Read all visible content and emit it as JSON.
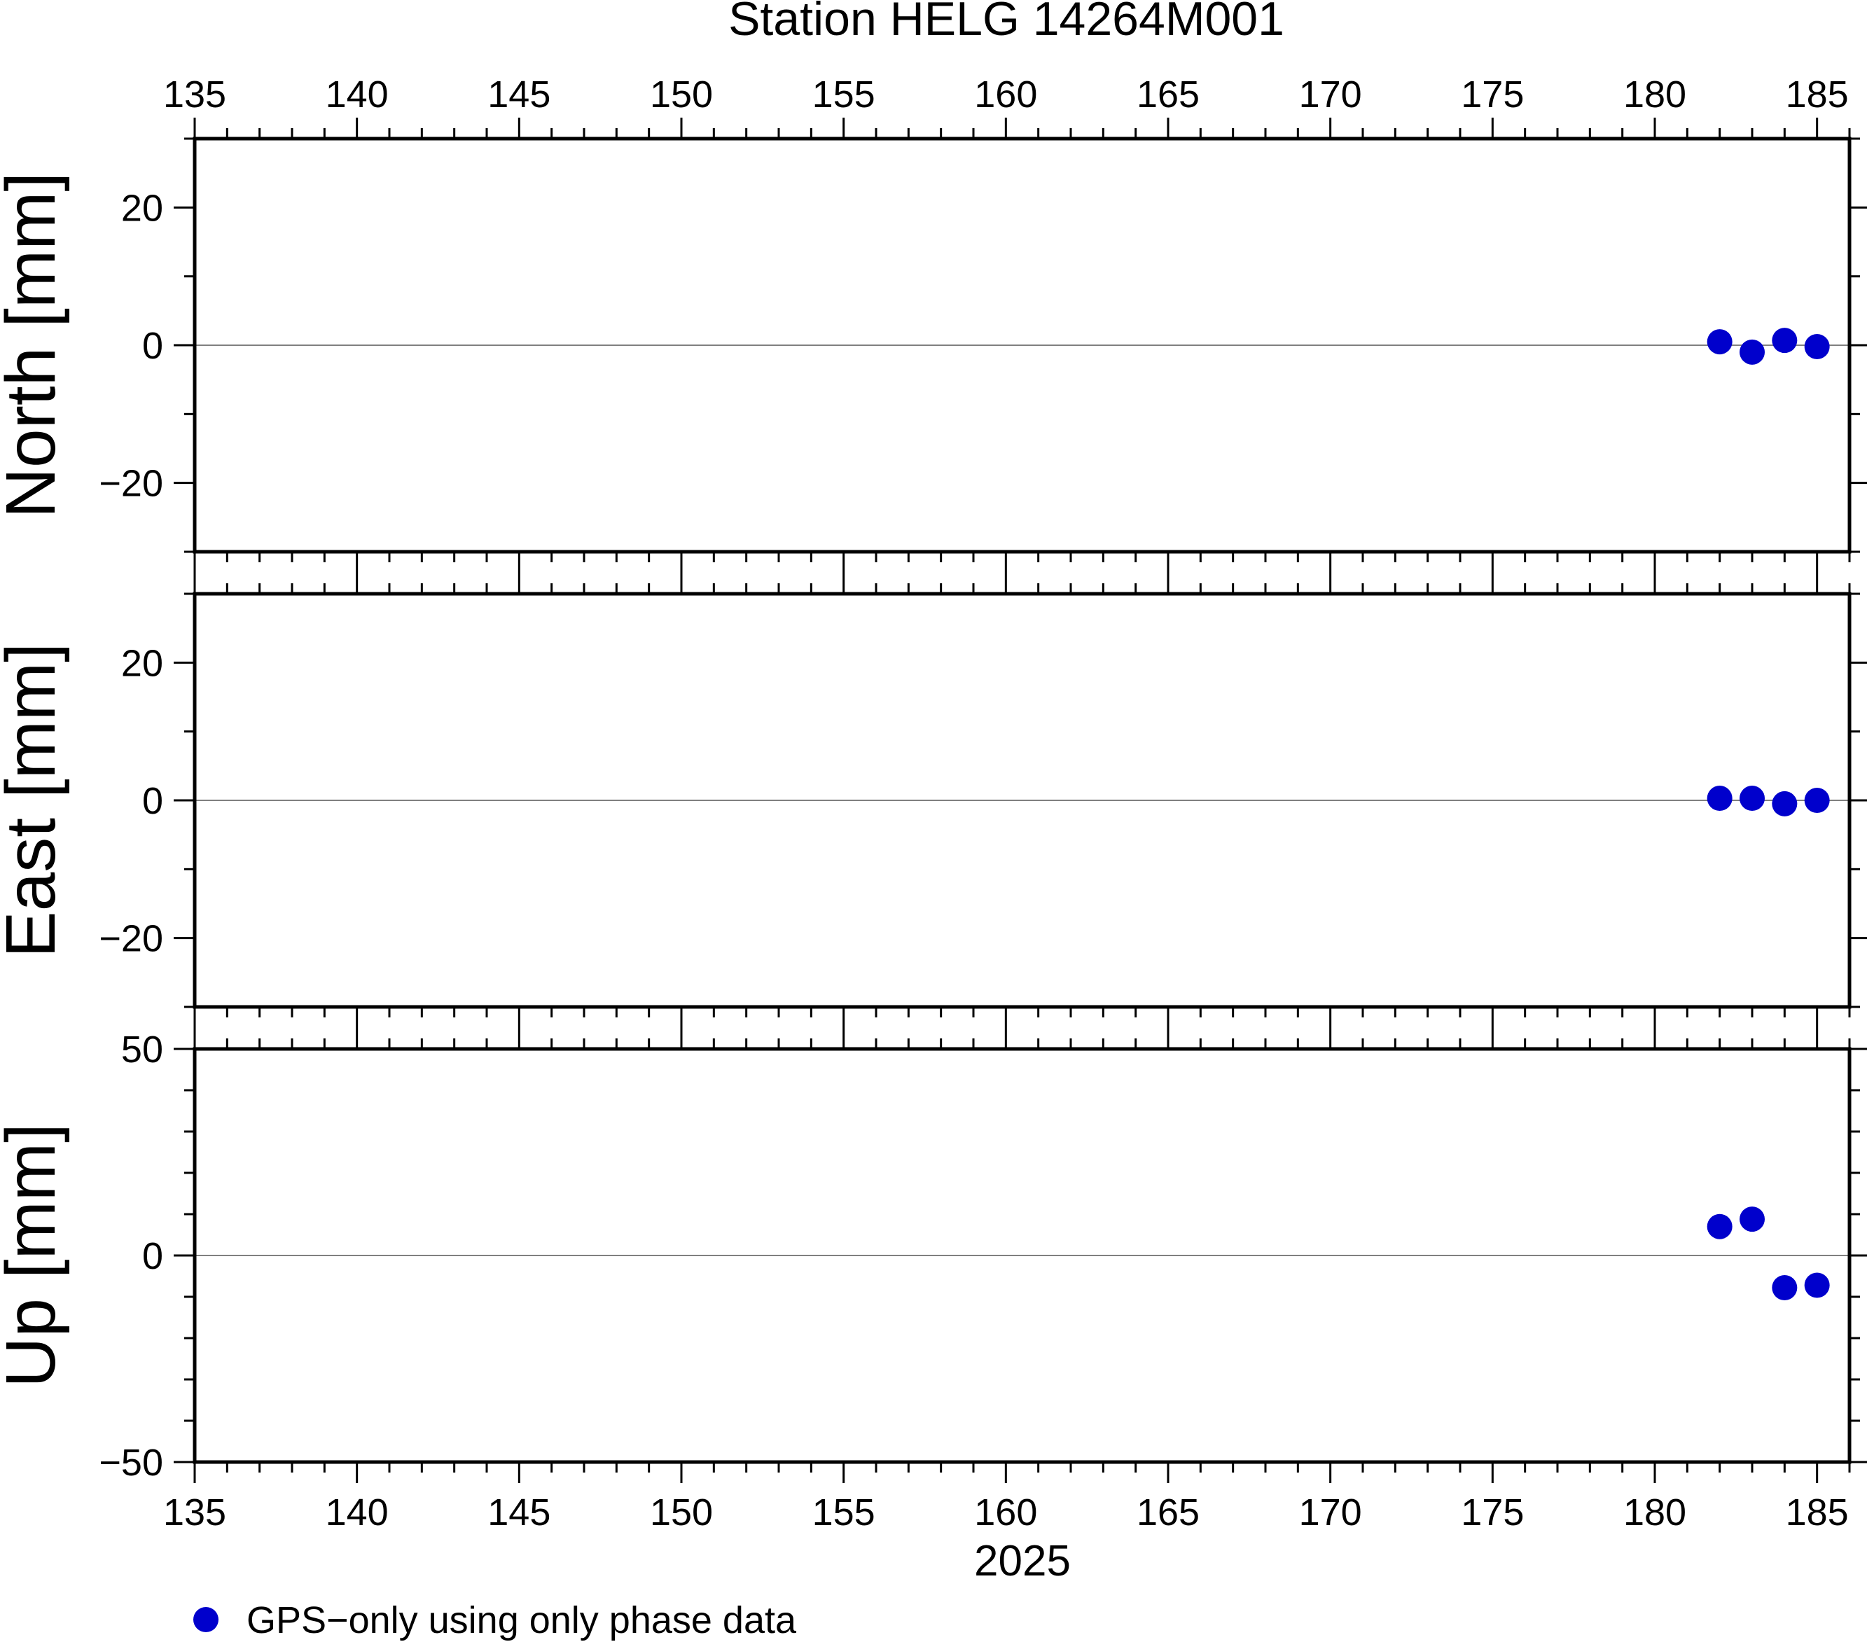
{
  "chart_data": {
    "type": "scatter",
    "title": "Station HELG 14264M001",
    "xlabel": "2025",
    "x_range": [
      135,
      186
    ],
    "x_ticks": [
      135,
      140,
      145,
      150,
      155,
      160,
      165,
      170,
      175,
      180,
      185
    ],
    "x_tick_labels": [
      "135",
      "140",
      "145",
      "150",
      "155",
      "160",
      "165",
      "170",
      "175",
      "180",
      "185"
    ],
    "panels": [
      {
        "ylabel": "North [mm]",
        "ylim": [
          -30,
          30
        ],
        "y_ticks": [
          20,
          0,
          -20
        ],
        "y_tick_labels": [
          "20",
          "0",
          "−20"
        ],
        "points": [
          {
            "x": 182.0,
            "y": 0.5
          },
          {
            "x": 183.0,
            "y": -1.0
          },
          {
            "x": 184.0,
            "y": 0.7
          },
          {
            "x": 185.0,
            "y": -0.2
          }
        ]
      },
      {
        "ylabel": "East [mm]",
        "ylim": [
          -30,
          30
        ],
        "y_ticks": [
          20,
          0,
          -20
        ],
        "y_tick_labels": [
          "20",
          "0",
          "−20"
        ],
        "points": [
          {
            "x": 182.0,
            "y": 0.3
          },
          {
            "x": 183.0,
            "y": 0.3
          },
          {
            "x": 184.0,
            "y": -0.5
          },
          {
            "x": 185.0,
            "y": 0.0
          }
        ]
      },
      {
        "ylabel": "Up [mm]",
        "ylim": [
          -50,
          50
        ],
        "y_ticks": [
          50,
          0,
          -50
        ],
        "y_tick_labels": [
          "50",
          "0",
          "−50"
        ],
        "points": [
          {
            "x": 182.0,
            "y": 7.0
          },
          {
            "x": 183.0,
            "y": 8.8
          },
          {
            "x": 184.0,
            "y": -7.8
          },
          {
            "x": 185.0,
            "y": -7.2
          }
        ]
      }
    ],
    "legend": {
      "label": "GPS−only using only phase data",
      "position": "bottom-left"
    },
    "marker_color": "#0000cc",
    "zero_line_color": "#808080",
    "grid": false
  }
}
